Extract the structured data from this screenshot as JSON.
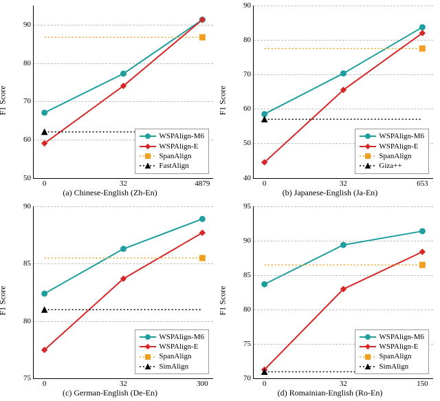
{
  "grid_color": "#bfbfbf",
  "background_color": "#ffffff",
  "label_fontsize": 12,
  "tick_fontsize": 11,
  "panels": [
    {
      "caption": "(a) Chinese-English (Zh-En)",
      "ylabel": "F1 Score",
      "ylim": [
        50,
        95
      ],
      "yticks": [
        50,
        60,
        70,
        80,
        90
      ],
      "x_categories": [
        "0",
        "32",
        "4879"
      ],
      "series": [
        {
          "label": "WSPAlign-M6",
          "color": "#1f9e9e",
          "marker": "circle",
          "line": "solid",
          "linewidth": 2,
          "values": [
            67,
            77.2,
            91.3
          ]
        },
        {
          "label": "WSPAlign-E",
          "color": "#d62728",
          "marker": "diamond",
          "line": "solid",
          "linewidth": 2,
          "values": [
            59,
            74,
            91.3
          ]
        },
        {
          "label": "SpanAlign",
          "color": "#f0a020",
          "marker": "square_filled",
          "line": "dotted",
          "linewidth": 1.5,
          "const": 86.7,
          "last_only_marker": true
        },
        {
          "label": "FastAlign",
          "color": "#000000",
          "marker": "triangle",
          "line": "dotted",
          "linewidth": 1.5,
          "const": 62,
          "first_only_marker": true
        }
      ],
      "legend_pos": "bottom-right"
    },
    {
      "caption": "(b) Japanese-English (Ja-En)",
      "ylabel": "F1 Score",
      "ylim": [
        40,
        90
      ],
      "yticks": [
        40,
        50,
        60,
        70,
        80,
        90
      ],
      "x_categories": [
        "0",
        "32",
        "653"
      ],
      "series": [
        {
          "label": "WSPAlign-M6",
          "color": "#1f9e9e",
          "marker": "circle",
          "line": "solid",
          "linewidth": 2,
          "values": [
            58.5,
            70.3,
            83.7
          ]
        },
        {
          "label": "WSPAlign-E",
          "color": "#d62728",
          "marker": "diamond",
          "line": "solid",
          "linewidth": 2,
          "values": [
            44.5,
            65.5,
            82
          ]
        },
        {
          "label": "SpanAlign",
          "color": "#f0a020",
          "marker": "square_filled",
          "line": "dotted",
          "linewidth": 1.5,
          "const": 77.5,
          "last_only_marker": true
        },
        {
          "label": "Giza++",
          "color": "#000000",
          "marker": "triangle",
          "line": "dotted",
          "linewidth": 1.5,
          "const": 57,
          "first_only_marker": true
        }
      ],
      "legend_pos": "bottom-right"
    },
    {
      "caption": "(c) German-English (De-En)",
      "ylabel": "F1 Score",
      "ylim": [
        75,
        90
      ],
      "yticks": [
        75,
        80,
        85,
        90
      ],
      "x_categories": [
        "0",
        "32",
        "300"
      ],
      "series": [
        {
          "label": "WSPAlign-M6",
          "color": "#1f9e9e",
          "marker": "circle",
          "line": "solid",
          "linewidth": 2,
          "values": [
            82.4,
            86.3,
            88.9
          ]
        },
        {
          "label": "WSPAlign-E",
          "color": "#d62728",
          "marker": "diamond",
          "line": "solid",
          "linewidth": 2,
          "values": [
            77.5,
            83.7,
            87.7
          ]
        },
        {
          "label": "SpanAlign",
          "color": "#f0a020",
          "marker": "square_filled",
          "line": "dotted",
          "linewidth": 1.5,
          "const": 85.5,
          "last_only_marker": true
        },
        {
          "label": "SimAlign",
          "color": "#000000",
          "marker": "triangle",
          "line": "dotted",
          "linewidth": 1.5,
          "const": 81,
          "first_only_marker": true
        }
      ],
      "legend_pos": "bottom-right"
    },
    {
      "caption": "(d) Romainian-English (Ro-En)",
      "ylabel": "F1 Score",
      "ylim": [
        70,
        95
      ],
      "yticks": [
        70,
        75,
        80,
        85,
        90,
        95
      ],
      "x_categories": [
        "0",
        "32",
        "150"
      ],
      "series": [
        {
          "label": "WSPAlign-M6",
          "color": "#1f9e9e",
          "marker": "circle",
          "line": "solid",
          "linewidth": 2,
          "values": [
            83.7,
            89.4,
            91.4
          ]
        },
        {
          "label": "WSPAlign-E",
          "color": "#d62728",
          "marker": "diamond",
          "line": "solid",
          "linewidth": 2,
          "values": [
            71.3,
            83,
            88.4
          ]
        },
        {
          "label": "SpanAlign",
          "color": "#f0a020",
          "marker": "square_filled",
          "line": "dotted",
          "linewidth": 1.5,
          "const": 86.5,
          "last_only_marker": true
        },
        {
          "label": "SimAlign",
          "color": "#000000",
          "marker": "triangle",
          "line": "dotted",
          "linewidth": 1.5,
          "const": 71,
          "first_only_marker": true
        }
      ],
      "legend_pos": "bottom-right"
    }
  ]
}
